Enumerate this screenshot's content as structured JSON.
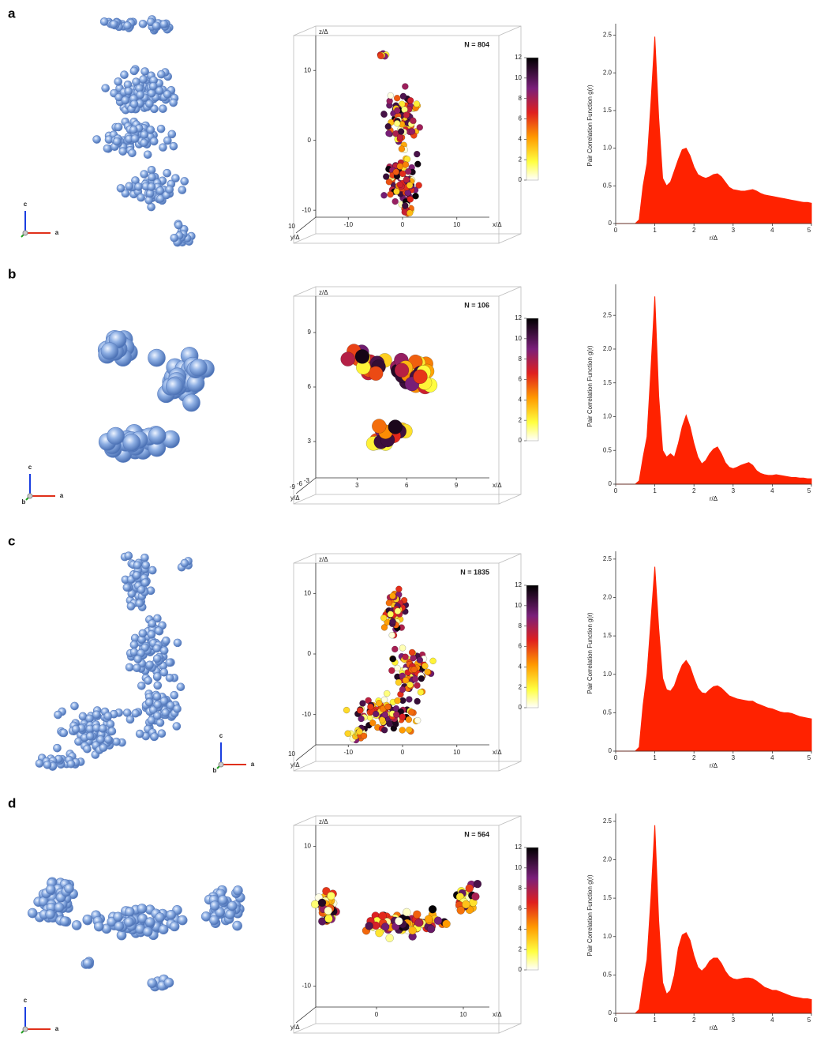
{
  "panels": [
    {
      "label": "a",
      "triad": [
        "c",
        "a"
      ],
      "cluster": {
        "count_label": "N = 804",
        "z_label": "z/Δ",
        "x_label": "x/Δ",
        "y_label": "y/Δ",
        "zlim": [
          -11,
          15
        ],
        "xlim": [
          -16,
          16
        ],
        "zticks": [
          -10,
          0,
          10
        ],
        "xticks": [
          -10,
          0,
          10
        ],
        "yticks": [
          10
        ],
        "colorbar": {
          "lim": [
            0,
            12
          ],
          "ticks": [
            0,
            2,
            4,
            6,
            8,
            10,
            12
          ]
        }
      }
    },
    {
      "label": "b",
      "triad": [
        "c",
        "b",
        "a"
      ],
      "cluster": {
        "count_label": "N = 106",
        "z_label": "z/Δ",
        "x_label": "x/Δ",
        "y_label": "y/Δ",
        "zlim": [
          1,
          11
        ],
        "xlim": [
          0.5,
          11
        ],
        "zticks": [
          3,
          6,
          9
        ],
        "xticks": [
          3,
          6,
          9
        ],
        "yticks": [
          -9,
          -6,
          -3
        ],
        "colorbar": {
          "lim": [
            0,
            12
          ],
          "ticks": [
            0,
            2,
            4,
            6,
            8,
            10,
            12
          ]
        }
      }
    },
    {
      "label": "c",
      "triad": [
        "c",
        "b",
        "a"
      ],
      "cluster": {
        "count_label": "N = 1835",
        "z_label": "z/Δ",
        "x_label": "x/Δ",
        "y_label": "y/Δ",
        "zlim": [
          -15,
          15
        ],
        "xlim": [
          -16,
          16
        ],
        "zticks": [
          -10,
          0,
          10
        ],
        "xticks": [
          -10,
          0,
          10
        ],
        "yticks": [
          10
        ],
        "colorbar": {
          "lim": [
            0,
            12
          ],
          "ticks": [
            0,
            2,
            4,
            6,
            8,
            10,
            12
          ]
        }
      }
    },
    {
      "label": "d",
      "triad": [
        "c",
        "a"
      ],
      "cluster": {
        "count_label": "N = 564",
        "z_label": "z/Δ",
        "x_label": "x/Δ",
        "y_label": "y/Δ",
        "zlim": [
          -13,
          13
        ],
        "xlim": [
          -7,
          13
        ],
        "zticks": [
          10,
          -10
        ],
        "xticks": [
          0,
          10
        ],
        "colorbar": {
          "lim": [
            0,
            12
          ],
          "ticks": [
            0,
            2,
            4,
            6,
            8,
            10,
            12
          ]
        }
      }
    }
  ],
  "chart_data": [
    {
      "type": "area",
      "color": "#ff2200",
      "xlabel": "r/Δ",
      "ylabel": "Pair Correlation Function g(r)",
      "xlim": [
        0,
        5
      ],
      "ylim": [
        0,
        2.6
      ],
      "xticks": [
        0,
        1,
        2,
        3,
        4,
        5
      ],
      "yticks": [
        0,
        0.5,
        {
          "value": 1,
          "label": "1.0"
        },
        1.5,
        {
          "value": 2,
          "label": "2.0"
        },
        2.5
      ],
      "x": [
        0,
        0.1,
        0.2,
        0.3,
        0.4,
        0.5,
        0.6,
        0.7,
        0.8,
        0.9,
        1,
        1.1,
        1.2,
        1.3,
        1.4,
        1.5,
        1.6,
        1.7,
        1.8,
        1.9,
        2,
        2.1,
        2.2,
        2.3,
        2.4,
        2.5,
        2.6,
        2.7,
        2.8,
        2.9,
        3,
        3.1,
        3.2,
        3.3,
        3.4,
        3.5,
        3.6,
        3.7,
        3.8,
        3.9,
        4,
        4.1,
        4.2,
        4.3,
        4.4,
        4.5,
        4.6,
        4.7,
        4.8,
        4.9,
        5
      ],
      "values": [
        0,
        0,
        0,
        0,
        0,
        0,
        0.05,
        0.5,
        0.8,
        1.6,
        2.48,
        1.4,
        0.6,
        0.5,
        0.55,
        0.7,
        0.85,
        0.98,
        1.0,
        0.9,
        0.75,
        0.65,
        0.62,
        0.6,
        0.62,
        0.65,
        0.66,
        0.62,
        0.55,
        0.48,
        0.45,
        0.44,
        0.43,
        0.43,
        0.44,
        0.45,
        0.43,
        0.4,
        0.38,
        0.37,
        0.36,
        0.35,
        0.34,
        0.33,
        0.32,
        0.31,
        0.3,
        0.29,
        0.28,
        0.28,
        0.27
      ]
    },
    {
      "type": "area",
      "color": "#ff2200",
      "xlabel": "r/Δ",
      "ylabel": "Pair Correlation Function g(r)",
      "xlim": [
        0,
        5
      ],
      "ylim": [
        0,
        2.9
      ],
      "xticks": [
        0,
        1,
        2,
        3,
        4,
        5
      ],
      "yticks": [
        0,
        0.5,
        {
          "value": 1,
          "label": "1.0"
        },
        1.5,
        {
          "value": 2,
          "label": "2.0"
        },
        2.5
      ],
      "x": [
        0,
        0.1,
        0.2,
        0.3,
        0.4,
        0.5,
        0.6,
        0.7,
        0.8,
        0.9,
        1,
        1.1,
        1.2,
        1.3,
        1.4,
        1.5,
        1.6,
        1.7,
        1.8,
        1.9,
        2,
        2.1,
        2.2,
        2.3,
        2.4,
        2.5,
        2.6,
        2.7,
        2.8,
        2.9,
        3,
        3.1,
        3.2,
        3.3,
        3.4,
        3.5,
        3.6,
        3.7,
        3.8,
        3.9,
        4,
        4.1,
        4.2,
        4.3,
        4.4,
        4.5,
        4.6,
        4.7,
        4.8,
        4.9,
        5
      ],
      "values": [
        0,
        0,
        0,
        0,
        0,
        0,
        0.05,
        0.4,
        0.7,
        1.7,
        2.78,
        1.3,
        0.5,
        0.4,
        0.45,
        0.4,
        0.6,
        0.85,
        1.02,
        0.85,
        0.6,
        0.4,
        0.3,
        0.35,
        0.45,
        0.52,
        0.55,
        0.45,
        0.32,
        0.25,
        0.23,
        0.25,
        0.28,
        0.3,
        0.32,
        0.28,
        0.2,
        0.16,
        0.14,
        0.13,
        0.13,
        0.14,
        0.13,
        0.12,
        0.11,
        0.1,
        0.1,
        0.09,
        0.09,
        0.08,
        0.08
      ]
    },
    {
      "type": "area",
      "color": "#ff2200",
      "xlabel": "r/Δ",
      "ylabel": "Pair Correlation Function g(r)",
      "xlim": [
        0,
        5
      ],
      "ylim": [
        0,
        2.55
      ],
      "xticks": [
        0,
        1,
        2,
        3,
        4,
        5
      ],
      "yticks": [
        0,
        0.5,
        {
          "value": 1,
          "label": "1.0"
        },
        1.5,
        {
          "value": 2,
          "label": "2.0"
        },
        2.5
      ],
      "x": [
        0,
        0.1,
        0.2,
        0.3,
        0.4,
        0.5,
        0.6,
        0.7,
        0.8,
        0.9,
        1,
        1.1,
        1.2,
        1.3,
        1.4,
        1.5,
        1.6,
        1.7,
        1.8,
        1.9,
        2,
        2.1,
        2.2,
        2.3,
        2.4,
        2.5,
        2.6,
        2.7,
        2.8,
        2.9,
        3,
        3.1,
        3.2,
        3.3,
        3.4,
        3.5,
        3.6,
        3.7,
        3.8,
        3.9,
        4,
        4.1,
        4.2,
        4.3,
        4.4,
        4.5,
        4.6,
        4.7,
        4.8,
        4.9,
        5
      ],
      "values": [
        0,
        0,
        0,
        0,
        0,
        0,
        0.05,
        0.6,
        1.0,
        1.7,
        2.4,
        1.6,
        0.95,
        0.8,
        0.78,
        0.85,
        1.0,
        1.12,
        1.18,
        1.1,
        0.95,
        0.82,
        0.76,
        0.75,
        0.8,
        0.84,
        0.85,
        0.82,
        0.77,
        0.72,
        0.7,
        0.68,
        0.67,
        0.66,
        0.65,
        0.65,
        0.62,
        0.6,
        0.58,
        0.56,
        0.55,
        0.53,
        0.51,
        0.5,
        0.5,
        0.49,
        0.47,
        0.45,
        0.44,
        0.43,
        0.42
      ]
    },
    {
      "type": "area",
      "color": "#ff2200",
      "xlabel": "r/Δ",
      "ylabel": "Pair Correlation Function g(r)",
      "xlim": [
        0,
        5
      ],
      "ylim": [
        0,
        2.55
      ],
      "xticks": [
        0,
        1,
        2,
        3,
        4,
        5
      ],
      "yticks": [
        0,
        0.5,
        {
          "value": 1,
          "label": "1.0"
        },
        1.5,
        {
          "value": 2,
          "label": "2.0"
        },
        2.5
      ],
      "x": [
        0,
        0.1,
        0.2,
        0.3,
        0.4,
        0.5,
        0.6,
        0.7,
        0.8,
        0.9,
        1,
        1.1,
        1.2,
        1.3,
        1.4,
        1.5,
        1.6,
        1.7,
        1.8,
        1.9,
        2,
        2.1,
        2.2,
        2.3,
        2.4,
        2.5,
        2.6,
        2.7,
        2.8,
        2.9,
        3,
        3.1,
        3.2,
        3.3,
        3.4,
        3.5,
        3.6,
        3.7,
        3.8,
        3.9,
        4,
        4.1,
        4.2,
        4.3,
        4.4,
        4.5,
        4.6,
        4.7,
        4.8,
        4.9,
        5
      ],
      "values": [
        0,
        0,
        0,
        0,
        0,
        0,
        0.05,
        0.4,
        0.7,
        1.5,
        2.45,
        1.2,
        0.4,
        0.25,
        0.3,
        0.5,
        0.85,
        1.02,
        1.05,
        0.95,
        0.75,
        0.6,
        0.55,
        0.6,
        0.68,
        0.72,
        0.72,
        0.65,
        0.55,
        0.48,
        0.45,
        0.44,
        0.45,
        0.46,
        0.46,
        0.45,
        0.42,
        0.38,
        0.34,
        0.32,
        0.3,
        0.3,
        0.28,
        0.26,
        0.24,
        0.22,
        0.21,
        0.2,
        0.19,
        0.19,
        0.18
      ]
    }
  ]
}
